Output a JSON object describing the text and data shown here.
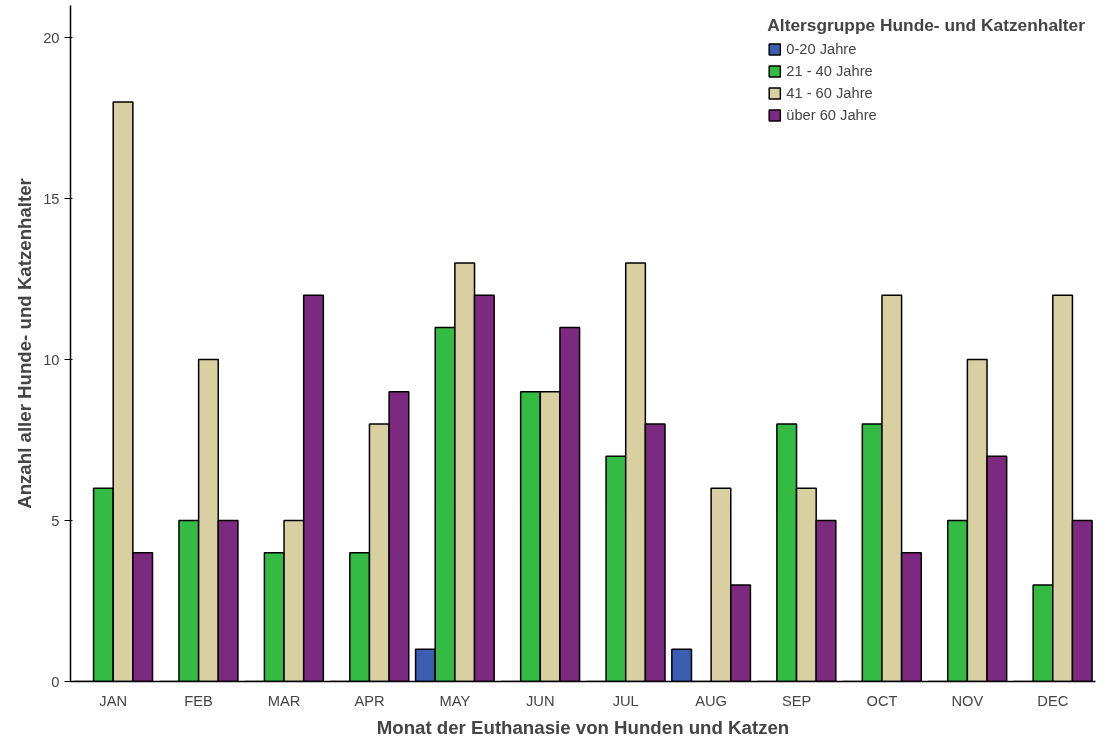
{
  "chart_data": {
    "type": "bar",
    "xlabel": "Monat der Euthanasie von Hunden und Katzen",
    "ylabel": "Anzahl aller Hunde- und Katzenhalter",
    "legend_title": "Altersgruppe Hunde- und Katzenhalter",
    "legend": "top right",
    "grid": false,
    "categories": [
      "JAN",
      "FEB",
      "MAR",
      "APR",
      "MAY",
      "JUN",
      "JUL",
      "AUG",
      "SEP",
      "OCT",
      "NOV",
      "DEC"
    ],
    "ylim": [
      0,
      21
    ],
    "yticks": [
      0,
      5,
      10,
      15,
      20
    ],
    "series": [
      {
        "name": "0-20 Jahre",
        "color": "#3a5fb0",
        "values": [
          0,
          0,
          0,
          0,
          1,
          0,
          0,
          1,
          0,
          0,
          0,
          0
        ]
      },
      {
        "name": "21 - 40 Jahre",
        "color": "#33bb44",
        "values": [
          6,
          5,
          4,
          4,
          11,
          9,
          7,
          0,
          8,
          8,
          5,
          3
        ]
      },
      {
        "name": "41 - 60 Jahre",
        "color": "#d8d0a0",
        "values": [
          18,
          10,
          5,
          8,
          13,
          9,
          13,
          6,
          6,
          12,
          10,
          12
        ]
      },
      {
        "name": "über 60 Jahre",
        "color": "#7b2a80",
        "values": [
          4,
          5,
          12,
          9,
          12,
          11,
          8,
          3,
          5,
          4,
          7,
          5
        ]
      }
    ]
  }
}
